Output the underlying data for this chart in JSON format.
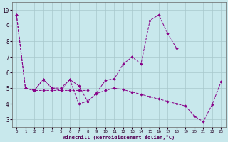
{
  "xlabel": "Windchill (Refroidissement éolien,°C)",
  "background_color": "#c8e8ec",
  "grid_color": "#a8c8cc",
  "line_color": "#880088",
  "xlim": [
    -0.5,
    23.5
  ],
  "ylim": [
    2.5,
    10.5
  ],
  "xticks": [
    0,
    1,
    2,
    3,
    4,
    5,
    6,
    7,
    8,
    9,
    10,
    11,
    12,
    13,
    14,
    15,
    16,
    17,
    18,
    19,
    20,
    21,
    22,
    23
  ],
  "yticks": [
    3,
    4,
    5,
    6,
    7,
    8,
    9,
    10
  ],
  "line1_x": [
    0,
    1,
    2,
    3,
    4,
    5,
    6,
    7,
    8
  ],
  "line1_y": [
    9.7,
    5.0,
    4.85,
    4.85,
    4.85,
    4.85,
    4.85,
    4.85,
    4.85
  ],
  "line2_x": [
    0,
    1,
    2,
    3,
    4,
    5,
    6,
    7,
    8,
    9,
    10,
    11,
    12,
    13,
    14,
    15,
    16,
    17,
    18
  ],
  "line2_y": [
    9.7,
    5.0,
    4.85,
    5.55,
    5.0,
    5.0,
    5.55,
    5.15,
    4.15,
    4.7,
    5.5,
    5.6,
    6.55,
    7.0,
    6.55,
    9.35,
    9.7,
    8.5,
    7.55
  ],
  "line3_x": [
    1,
    2,
    3,
    4,
    5,
    6,
    7,
    8,
    9,
    10,
    11,
    12,
    13,
    14,
    15,
    16,
    17,
    18,
    19,
    20,
    21,
    22,
    23
  ],
  "line3_y": [
    5.0,
    4.85,
    5.55,
    5.0,
    4.85,
    5.55,
    4.0,
    4.15,
    4.65,
    4.85,
    5.0,
    4.9,
    4.75,
    4.6,
    4.45,
    4.3,
    4.15,
    4.0,
    3.85,
    3.2,
    2.85,
    3.95,
    5.4
  ],
  "marker": "D",
  "markersize": 2.2,
  "linewidth": 0.7
}
